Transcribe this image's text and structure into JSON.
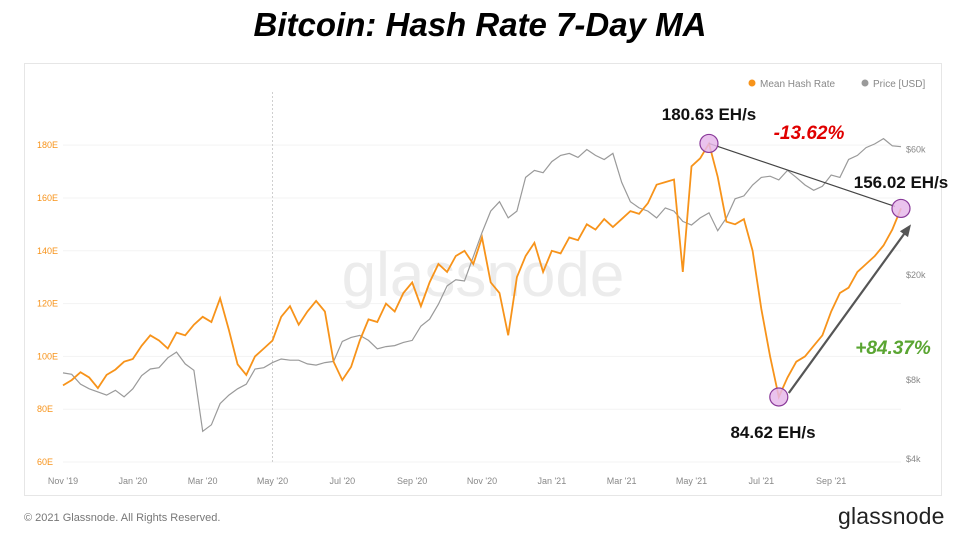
{
  "title": "Bitcoin: Hash Rate 7-Day MA",
  "footer": {
    "copyright": "© 2021 Glassnode. All Rights Reserved.",
    "brand": "glassnode"
  },
  "watermark": "glassnode",
  "colors": {
    "hash": "#f7931a",
    "price": "#9a9a9a",
    "marker_fill": "#e6b8ea",
    "marker_stroke": "#8a3a9a",
    "drop": "#e00000",
    "gain": "#5aa532",
    "arrow": "#555555"
  },
  "chart_data": {
    "type": "line",
    "x_ticks": [
      "Nov '19",
      "Jan '20",
      "Mar '20",
      "May '20",
      "Jul '20",
      "Sep '20",
      "Nov '20",
      "Jan '21",
      "Mar '21",
      "May '21",
      "Jul '21",
      "Sep '21"
    ],
    "x_range": [
      0,
      24
    ],
    "y_left": {
      "ticks": [
        60,
        80,
        100,
        120,
        140,
        160,
        180
      ],
      "tick_labels": [
        "60E",
        "80E",
        "100E",
        "120E",
        "140E",
        "160E",
        "180E"
      ],
      "range": [
        60,
        188
      ]
    },
    "y_right": {
      "scale": "log",
      "ticks": [
        4000,
        8000,
        20000,
        60000
      ],
      "tick_labels": [
        "$4k",
        "$8k",
        "$20k",
        "$60k"
      ],
      "range": [
        3900,
        75000
      ]
    },
    "legend": [
      "Mean Hash Rate",
      "Price [USD]"
    ],
    "legend_position": "top-right",
    "series": [
      {
        "name": "Mean Hash Rate",
        "axis": "left",
        "points": [
          [
            0,
            89
          ],
          [
            0.25,
            91
          ],
          [
            0.5,
            94
          ],
          [
            0.75,
            92
          ],
          [
            1,
            88
          ],
          [
            1.25,
            93
          ],
          [
            1.5,
            95
          ],
          [
            1.75,
            98
          ],
          [
            2,
            99
          ],
          [
            2.25,
            104
          ],
          [
            2.5,
            108
          ],
          [
            2.75,
            106
          ],
          [
            3,
            103
          ],
          [
            3.25,
            109
          ],
          [
            3.5,
            108
          ],
          [
            3.75,
            112
          ],
          [
            4,
            115
          ],
          [
            4.25,
            113
          ],
          [
            4.5,
            122
          ],
          [
            4.75,
            110
          ],
          [
            5,
            97
          ],
          [
            5.25,
            93
          ],
          [
            5.5,
            100
          ],
          [
            5.75,
            103
          ],
          [
            6,
            106
          ],
          [
            6.25,
            115
          ],
          [
            6.5,
            119
          ],
          [
            6.75,
            112
          ],
          [
            7,
            117
          ],
          [
            7.25,
            121
          ],
          [
            7.5,
            117
          ],
          [
            7.75,
            98
          ],
          [
            8,
            91
          ],
          [
            8.25,
            96
          ],
          [
            8.5,
            106
          ],
          [
            8.75,
            114
          ],
          [
            9,
            113
          ],
          [
            9.25,
            120
          ],
          [
            9.5,
            117
          ],
          [
            9.75,
            124
          ],
          [
            10,
            128
          ],
          [
            10.25,
            119
          ],
          [
            10.5,
            128
          ],
          [
            10.75,
            135
          ],
          [
            11,
            132
          ],
          [
            11.25,
            138
          ],
          [
            11.5,
            140
          ],
          [
            11.75,
            135
          ],
          [
            12,
            145
          ],
          [
            12.25,
            128
          ],
          [
            12.5,
            124
          ],
          [
            12.75,
            108
          ],
          [
            13,
            130
          ],
          [
            13.25,
            138
          ],
          [
            13.5,
            143
          ],
          [
            13.75,
            132
          ],
          [
            14,
            140
          ],
          [
            14.25,
            139
          ],
          [
            14.5,
            145
          ],
          [
            14.75,
            144
          ],
          [
            15,
            150
          ],
          [
            15.25,
            148
          ],
          [
            15.5,
            152
          ],
          [
            15.75,
            149
          ],
          [
            16,
            152
          ],
          [
            16.25,
            155
          ],
          [
            16.5,
            154
          ],
          [
            16.75,
            158
          ],
          [
            17,
            165
          ],
          [
            17.25,
            166
          ],
          [
            17.5,
            167
          ],
          [
            17.75,
            132
          ],
          [
            18,
            172
          ],
          [
            18.25,
            175
          ],
          [
            18.5,
            180.63
          ],
          [
            18.75,
            168
          ],
          [
            19,
            151
          ],
          [
            19.25,
            150
          ],
          [
            19.5,
            152
          ],
          [
            19.75,
            140
          ],
          [
            20,
            118
          ],
          [
            20.25,
            100
          ],
          [
            20.5,
            84.62
          ],
          [
            20.75,
            92
          ],
          [
            21,
            98
          ],
          [
            21.25,
            100
          ],
          [
            21.5,
            104
          ],
          [
            21.75,
            108
          ],
          [
            22,
            117
          ],
          [
            22.25,
            124
          ],
          [
            22.5,
            126
          ],
          [
            22.75,
            132
          ],
          [
            23,
            135
          ],
          [
            23.25,
            138
          ],
          [
            23.5,
            142
          ],
          [
            23.75,
            148
          ],
          [
            24,
            156.02
          ]
        ]
      },
      {
        "name": "Price [USD]",
        "axis": "right",
        "points": [
          [
            0,
            8500
          ],
          [
            0.25,
            8400
          ],
          [
            0.5,
            7700
          ],
          [
            0.75,
            7400
          ],
          [
            1,
            7200
          ],
          [
            1.25,
            7000
          ],
          [
            1.5,
            7300
          ],
          [
            1.75,
            6900
          ],
          [
            2,
            7400
          ],
          [
            2.25,
            8300
          ],
          [
            2.5,
            8800
          ],
          [
            2.75,
            8900
          ],
          [
            3,
            9700
          ],
          [
            3.25,
            10200
          ],
          [
            3.5,
            9200
          ],
          [
            3.75,
            8700
          ],
          [
            4,
            5100
          ],
          [
            4.25,
            5400
          ],
          [
            4.5,
            6500
          ],
          [
            4.75,
            7000
          ],
          [
            5,
            7400
          ],
          [
            5.25,
            7700
          ],
          [
            5.5,
            8800
          ],
          [
            5.75,
            8900
          ],
          [
            6,
            9300
          ],
          [
            6.25,
            9600
          ],
          [
            6.5,
            9500
          ],
          [
            6.75,
            9500
          ],
          [
            7,
            9200
          ],
          [
            7.25,
            9100
          ],
          [
            7.5,
            9300
          ],
          [
            7.75,
            9400
          ],
          [
            8,
            11200
          ],
          [
            8.25,
            11600
          ],
          [
            8.5,
            11800
          ],
          [
            8.75,
            11300
          ],
          [
            9,
            10500
          ],
          [
            9.25,
            10700
          ],
          [
            9.5,
            10800
          ],
          [
            9.75,
            11100
          ],
          [
            10,
            11300
          ],
          [
            10.25,
            12800
          ],
          [
            10.5,
            13600
          ],
          [
            10.75,
            15500
          ],
          [
            11,
            18200
          ],
          [
            11.25,
            19200
          ],
          [
            11.5,
            19000
          ],
          [
            11.75,
            23500
          ],
          [
            12,
            29000
          ],
          [
            12.25,
            35000
          ],
          [
            12.5,
            38000
          ],
          [
            12.75,
            33000
          ],
          [
            13,
            35000
          ],
          [
            13.25,
            47000
          ],
          [
            13.5,
            50000
          ],
          [
            13.75,
            49000
          ],
          [
            14,
            54000
          ],
          [
            14.25,
            57000
          ],
          [
            14.5,
            58000
          ],
          [
            14.75,
            56000
          ],
          [
            15,
            60000
          ],
          [
            15.25,
            57000
          ],
          [
            15.5,
            55000
          ],
          [
            15.75,
            58000
          ],
          [
            16,
            45000
          ],
          [
            16.25,
            38000
          ],
          [
            16.5,
            36000
          ],
          [
            16.75,
            35000
          ],
          [
            17,
            33000
          ],
          [
            17.25,
            36000
          ],
          [
            17.5,
            35000
          ],
          [
            17.75,
            32000
          ],
          [
            18,
            31000
          ],
          [
            18.25,
            33000
          ],
          [
            18.5,
            34500
          ],
          [
            18.75,
            29500
          ],
          [
            19,
            33000
          ],
          [
            19.25,
            39000
          ],
          [
            19.5,
            40000
          ],
          [
            19.75,
            44000
          ],
          [
            20,
            47000
          ],
          [
            20.25,
            47500
          ],
          [
            20.5,
            46000
          ],
          [
            20.75,
            50000
          ],
          [
            21,
            47000
          ],
          [
            21.25,
            44000
          ],
          [
            21.5,
            42000
          ],
          [
            21.75,
            43500
          ],
          [
            22,
            48000
          ],
          [
            22.25,
            47000
          ],
          [
            22.5,
            55000
          ],
          [
            22.75,
            57000
          ],
          [
            23,
            61000
          ],
          [
            23.25,
            63000
          ],
          [
            23.5,
            66000
          ],
          [
            23.75,
            62000
          ],
          [
            24,
            61500
          ]
        ]
      }
    ],
    "markers": [
      {
        "x": 18.5,
        "y": 180.63,
        "label": "180.63 EH/s"
      },
      {
        "x": 24,
        "y": 156.02,
        "label": "156.02 EH/s"
      },
      {
        "x": 20.5,
        "y": 84.62,
        "label": "84.62 EH/s"
      }
    ],
    "annotations": [
      {
        "text": "-13.62%",
        "type": "drop"
      },
      {
        "text": "+84.37%",
        "type": "gain"
      }
    ],
    "vertical_reference_line": "May '20"
  }
}
